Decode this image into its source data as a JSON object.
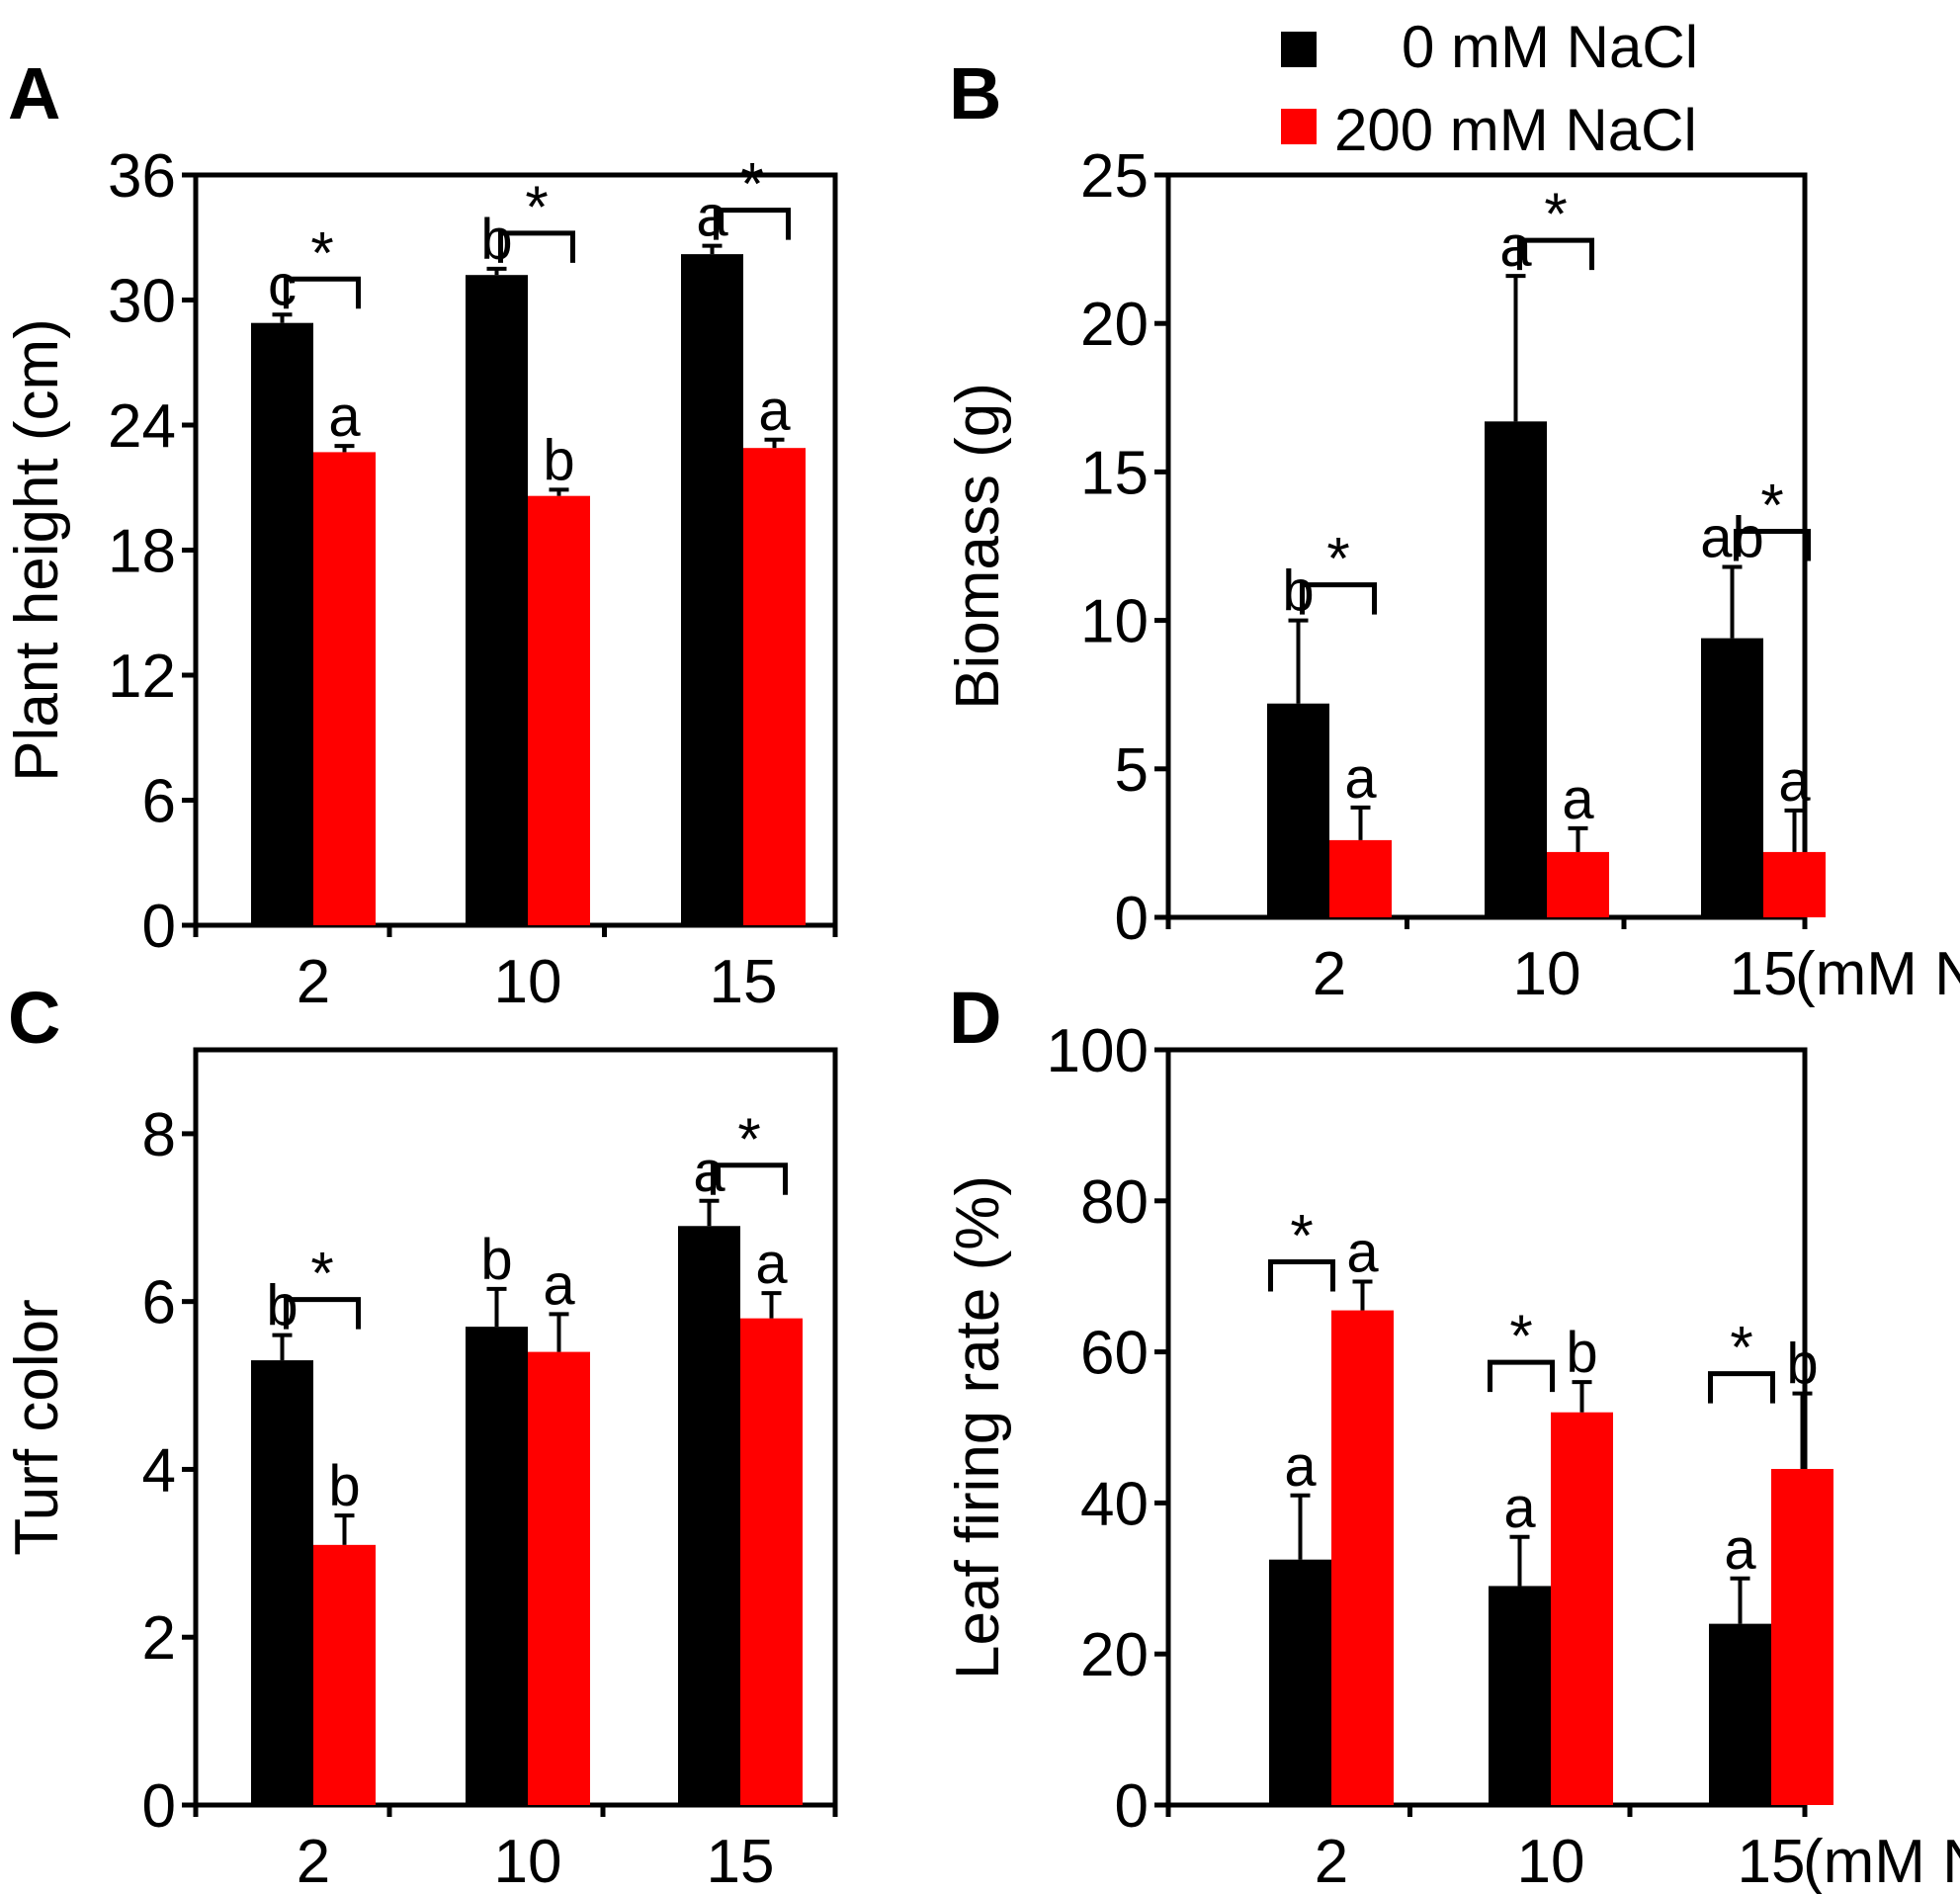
{
  "colors": {
    "control": "#000000",
    "salt": "#ff0000"
  },
  "legend": [
    {
      "label": "0  mM NaCl",
      "color": "#000000"
    },
    {
      "label": "200 mM NaCl",
      "color": "#ff0000"
    }
  ],
  "x_unit_label": "(mM N)",
  "chart_data": [
    {
      "panel": "A",
      "type": "bar",
      "ylabel": "Plant height (cm)",
      "categories": [
        "2",
        "10",
        "15"
      ],
      "show_unit": false,
      "ylim": [
        0,
        36
      ],
      "yticks": [
        0,
        6,
        12,
        18,
        24,
        30,
        36
      ],
      "series": [
        {
          "name": "0  mM NaCl",
          "values": [
            28.9,
            31.2,
            32.2
          ],
          "errors": [
            0.4,
            0.3,
            0.4
          ],
          "letters": [
            "c",
            "b",
            "a"
          ]
        },
        {
          "name": "200 mM NaCl",
          "values": [
            22.7,
            20.6,
            22.9
          ],
          "errors": [
            0.3,
            0.3,
            0.4
          ],
          "letters": [
            "a",
            "b",
            "a"
          ]
        }
      ],
      "significance": [
        {
          "group": 0,
          "mark": "*"
        },
        {
          "group": 1,
          "mark": "*"
        },
        {
          "group": 2,
          "mark": "*"
        }
      ]
    },
    {
      "panel": "B",
      "type": "bar",
      "ylabel": "Biomass (g)",
      "categories": [
        "2",
        "10",
        "15"
      ],
      "show_unit": true,
      "ylim": [
        0,
        25
      ],
      "yticks": [
        0,
        5,
        10,
        15,
        20,
        25
      ],
      "series": [
        {
          "name": "0  mM NaCl",
          "values": [
            7.2,
            16.7,
            9.4
          ],
          "errors": [
            2.8,
            4.9,
            2.4
          ],
          "letters": [
            "b",
            "a",
            "ab"
          ]
        },
        {
          "name": "200 mM NaCl",
          "values": [
            2.6,
            2.2,
            2.2
          ],
          "errors": [
            1.1,
            0.8,
            1.4
          ],
          "letters": [
            "a",
            "a",
            "a"
          ]
        }
      ],
      "significance": [
        {
          "group": 0,
          "mark": "*"
        },
        {
          "group": 1,
          "mark": "*"
        },
        {
          "group": 2,
          "mark": "*"
        }
      ]
    },
    {
      "panel": "C",
      "type": "bar",
      "ylabel": "Turf color",
      "categories": [
        "2",
        "10",
        "15"
      ],
      "show_unit": false,
      "ylim": [
        0,
        9
      ],
      "yticks": [
        0,
        2,
        4,
        6,
        8
      ],
      "series": [
        {
          "name": "0  mM NaCl",
          "values": [
            5.3,
            5.7,
            6.9
          ],
          "errors": [
            0.3,
            0.45,
            0.3
          ],
          "letters": [
            "b",
            "b",
            "a"
          ]
        },
        {
          "name": "200 mM NaCl",
          "values": [
            3.1,
            5.4,
            5.8
          ],
          "errors": [
            0.35,
            0.45,
            0.3
          ],
          "letters": [
            "b",
            "a",
            "a"
          ]
        }
      ],
      "significance": [
        {
          "group": 0,
          "mark": "*"
        },
        {
          "group": 2,
          "mark": "*"
        }
      ]
    },
    {
      "panel": "D",
      "type": "bar",
      "ylabel": "Leaf firing rate (%)",
      "categories": [
        "2",
        "10",
        "15"
      ],
      "show_unit": true,
      "ylim": [
        0,
        100
      ],
      "yticks": [
        0,
        20,
        40,
        60,
        80,
        100
      ],
      "series": [
        {
          "name": "0  mM NaCl",
          "values": [
            32.5,
            29,
            24
          ],
          "errors": [
            8.5,
            6.5,
            6
          ],
          "letters": [
            "a",
            "a",
            "a"
          ]
        },
        {
          "name": "200 mM NaCl",
          "values": [
            65.5,
            52,
            44.5
          ],
          "errors": [
            3.8,
            4,
            10
          ],
          "letters": [
            "a",
            "b",
            "b"
          ]
        }
      ],
      "significance": [
        {
          "group": 0,
          "mark": "*"
        },
        {
          "group": 1,
          "mark": "*"
        },
        {
          "group": 2,
          "mark": "*"
        }
      ]
    }
  ]
}
